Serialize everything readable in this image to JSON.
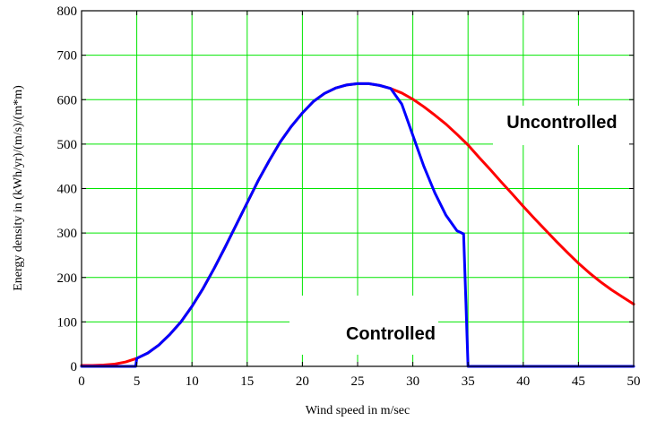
{
  "chart_data": {
    "type": "line",
    "title": "",
    "xlabel": "Wind speed in m/sec",
    "ylabel": "Energy density in (kWh/yr)/(m/s)/(m*m)",
    "xlim": [
      0,
      50
    ],
    "ylim": [
      0,
      800
    ],
    "xticks": [
      0,
      5,
      10,
      15,
      20,
      25,
      30,
      35,
      40,
      45,
      50
    ],
    "yticks": [
      0,
      100,
      200,
      300,
      400,
      500,
      600,
      700,
      800
    ],
    "grid": true,
    "grid_color": "#00e600",
    "series": [
      {
        "name": "Uncontrolled",
        "color": "#ff0000",
        "x": [
          0,
          1,
          2,
          3,
          4,
          5,
          6,
          7,
          8,
          9,
          10,
          11,
          12,
          13,
          14,
          15,
          16,
          17,
          18,
          19,
          20,
          21,
          22,
          23,
          24,
          25,
          26,
          27,
          28,
          29,
          30,
          31,
          32,
          33,
          34,
          35,
          36,
          37,
          38,
          39,
          40,
          41,
          42,
          43,
          44,
          45,
          46,
          47,
          48,
          49,
          50
        ],
        "y": [
          2,
          2,
          3,
          5,
          10,
          18,
          30,
          48,
          72,
          100,
          135,
          175,
          220,
          268,
          318,
          368,
          418,
          463,
          505,
          540,
          570,
          596,
          614,
          626,
          633,
          636,
          636,
          632,
          625,
          615,
          601,
          584,
          565,
          545,
          522,
          498,
          470,
          443,
          415,
          388,
          360,
          333,
          307,
          281,
          256,
          232,
          210,
          190,
          172,
          156,
          140
        ]
      },
      {
        "name": "Controlled",
        "color": "#0000ff",
        "x": [
          0,
          1,
          2,
          3,
          4,
          4.9,
          5,
          6,
          7,
          8,
          9,
          10,
          11,
          12,
          13,
          14,
          15,
          16,
          17,
          18,
          19,
          20,
          21,
          22,
          23,
          24,
          25,
          26,
          27,
          28,
          29,
          30,
          31,
          32,
          33,
          34,
          34.6,
          34.8,
          35,
          36,
          37,
          38,
          39,
          40,
          41,
          42,
          43,
          44,
          45,
          46,
          47,
          48,
          49,
          50
        ],
        "y": [
          0,
          0,
          0,
          0,
          0,
          0,
          18,
          30,
          48,
          72,
          100,
          135,
          175,
          220,
          268,
          318,
          368,
          418,
          463,
          505,
          540,
          570,
          596,
          614,
          626,
          633,
          636,
          636,
          632,
          625,
          590,
          520,
          450,
          390,
          340,
          305,
          298,
          150,
          0,
          0,
          0,
          0,
          0,
          0,
          0,
          0,
          0,
          0,
          0,
          0,
          0,
          0,
          0,
          0
        ]
      }
    ],
    "annotations": [
      {
        "text": "Uncontrolled",
        "x": 43.5,
        "y": 550
      },
      {
        "text": "Controlled",
        "x": 28,
        "y": 75
      }
    ]
  }
}
